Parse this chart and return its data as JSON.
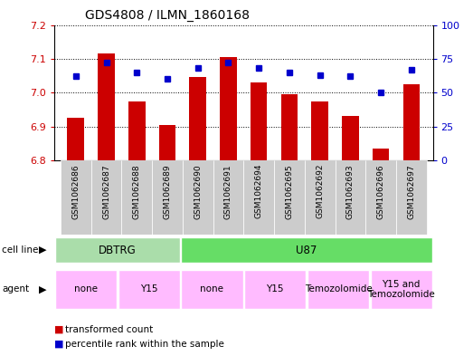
{
  "title": "GDS4808 / ILMN_1860168",
  "samples": [
    "GSM1062686",
    "GSM1062687",
    "GSM1062688",
    "GSM1062689",
    "GSM1062690",
    "GSM1062691",
    "GSM1062694",
    "GSM1062695",
    "GSM1062692",
    "GSM1062693",
    "GSM1062696",
    "GSM1062697"
  ],
  "bar_values": [
    6.925,
    7.115,
    6.975,
    6.905,
    7.045,
    7.105,
    7.03,
    6.995,
    6.975,
    6.93,
    6.835,
    7.025
  ],
  "percentile_values": [
    62,
    72,
    65,
    60,
    68,
    72,
    68,
    65,
    63,
    62,
    50,
    67
  ],
  "ylim_left": [
    6.8,
    7.2
  ],
  "ylim_right": [
    0,
    100
  ],
  "yticks_left": [
    6.8,
    6.9,
    7.0,
    7.1,
    7.2
  ],
  "yticks_right": [
    0,
    25,
    50,
    75,
    100
  ],
  "bar_color": "#cc0000",
  "dot_color": "#0000cc",
  "bar_bottom": 6.8,
  "cell_line_groups": [
    {
      "label": "DBTRG",
      "start": 0,
      "end": 3,
      "color": "#aaddaa"
    },
    {
      "label": "U87",
      "start": 4,
      "end": 11,
      "color": "#66dd66"
    }
  ],
  "agent_groups": [
    {
      "label": "none",
      "start": 0,
      "end": 1,
      "color": "#ffbbff"
    },
    {
      "label": "Y15",
      "start": 2,
      "end": 3,
      "color": "#ffbbff"
    },
    {
      "label": "none",
      "start": 4,
      "end": 5,
      "color": "#ffbbff"
    },
    {
      "label": "Y15",
      "start": 6,
      "end": 7,
      "color": "#ffbbff"
    },
    {
      "label": "Temozolomide",
      "start": 8,
      "end": 9,
      "color": "#ffbbff"
    },
    {
      "label": "Y15 and\nTemozolomide",
      "start": 10,
      "end": 11,
      "color": "#ffbbff"
    }
  ],
  "legend_items": [
    {
      "label": "transformed count",
      "color": "#cc0000"
    },
    {
      "label": "percentile rank within the sample",
      "color": "#0000cc"
    }
  ],
  "xtick_bg_color": "#cccccc",
  "grid_color": "black"
}
